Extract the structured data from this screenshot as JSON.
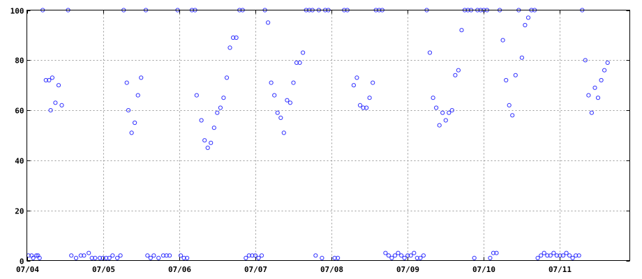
{
  "chart_data": {
    "type": "scatter",
    "title": "",
    "xlabel": "",
    "ylabel": "",
    "grid": true,
    "colors": {
      "points": "#3232ff",
      "grid": "#9a9a9a",
      "frame": "#000000"
    },
    "x_range": [
      "2013-07-04 00:00",
      "2013-07-11 22:00"
    ],
    "ylim": [
      0,
      100
    ],
    "y_ticks": [
      0,
      20,
      40,
      60,
      80,
      100
    ],
    "x_ticks": [
      {
        "t": "2013-07-04 00:00",
        "label": "07/04"
      },
      {
        "t": "2013-07-05 00:00",
        "label": "07/05"
      },
      {
        "t": "2013-07-06 00:00",
        "label": "07/06"
      },
      {
        "t": "2013-07-07 00:00",
        "label": "07/07"
      },
      {
        "t": "2013-07-08 00:00",
        "label": "07/08"
      },
      {
        "t": "2013-07-09 00:00",
        "label": "07/09"
      },
      {
        "t": "2013-07-10 00:00",
        "label": "07/10"
      },
      {
        "t": "2013-07-11 00:00",
        "label": "07/11"
      }
    ],
    "points": [
      [
        "2013-07-04 05:00",
        100
      ],
      [
        "2013-07-04 13:00",
        100
      ],
      [
        "2013-07-04 06:00",
        72
      ],
      [
        "2013-07-04 07:00",
        72
      ],
      [
        "2013-07-04 07:30",
        60
      ],
      [
        "2013-07-04 08:00",
        73
      ],
      [
        "2013-07-04 09:00",
        63
      ],
      [
        "2013-07-04 10:00",
        70
      ],
      [
        "2013-07-04 11:00",
        62
      ],
      [
        "2013-07-04 00:30",
        2
      ],
      [
        "2013-07-04 01:30",
        2
      ],
      [
        "2013-07-04 02:00",
        1
      ],
      [
        "2013-07-04 03:00",
        2
      ],
      [
        "2013-07-04 03:30",
        2
      ],
      [
        "2013-07-04 04:00",
        1
      ],
      [
        "2013-07-04 14:00",
        2
      ],
      [
        "2013-07-04 15:30",
        1
      ],
      [
        "2013-07-04 17:00",
        2
      ],
      [
        "2013-07-04 18:00",
        2
      ],
      [
        "2013-07-04 19:30",
        3
      ],
      [
        "2013-07-04 20:30",
        1
      ],
      [
        "2013-07-04 21:30",
        1
      ],
      [
        "2013-07-04 23:00",
        1
      ],
      [
        "2013-07-05 00:00",
        1
      ],
      [
        "2013-07-05 01:00",
        1
      ],
      [
        "2013-07-05 02:00",
        1
      ],
      [
        "2013-07-05 03:00",
        2
      ],
      [
        "2013-07-05 04:30",
        1
      ],
      [
        "2013-07-05 05:30",
        2
      ],
      [
        "2013-07-05 06:30",
        100
      ],
      [
        "2013-07-05 07:30",
        71
      ],
      [
        "2013-07-05 08:00",
        60
      ],
      [
        "2013-07-05 09:00",
        51
      ],
      [
        "2013-07-05 10:00",
        55
      ],
      [
        "2013-07-05 11:00",
        66
      ],
      [
        "2013-07-05 12:00",
        73
      ],
      [
        "2013-07-05 13:30",
        100
      ],
      [
        "2013-07-05 14:00",
        2
      ],
      [
        "2013-07-05 15:00",
        1
      ],
      [
        "2013-07-05 16:00",
        2
      ],
      [
        "2013-07-05 17:30",
        1
      ],
      [
        "2013-07-05 19:00",
        2
      ],
      [
        "2013-07-05 20:00",
        2
      ],
      [
        "2013-07-05 21:00",
        2
      ],
      [
        "2013-07-05 23:30",
        100
      ],
      [
        "2013-07-06 00:30",
        2
      ],
      [
        "2013-07-06 01:30",
        1
      ],
      [
        "2013-07-06 02:30",
        1
      ],
      [
        "2013-07-06 04:00",
        100
      ],
      [
        "2013-07-06 05:00",
        100
      ],
      [
        "2013-07-06 05:30",
        66
      ],
      [
        "2013-07-06 07:00",
        56
      ],
      [
        "2013-07-06 08:00",
        48
      ],
      [
        "2013-07-06 09:00",
        45
      ],
      [
        "2013-07-06 10:00",
        47
      ],
      [
        "2013-07-06 11:00",
        53
      ],
      [
        "2013-07-06 12:00",
        59
      ],
      [
        "2013-07-06 13:00",
        61
      ],
      [
        "2013-07-06 14:00",
        65
      ],
      [
        "2013-07-06 15:00",
        73
      ],
      [
        "2013-07-06 16:00",
        85
      ],
      [
        "2013-07-06 17:00",
        89
      ],
      [
        "2013-07-06 18:00",
        89
      ],
      [
        "2013-07-06 19:00",
        100
      ],
      [
        "2013-07-06 20:00",
        100
      ],
      [
        "2013-07-06 21:00",
        1
      ],
      [
        "2013-07-06 22:00",
        2
      ],
      [
        "2013-07-06 23:00",
        2
      ],
      [
        "2013-07-07 00:00",
        2
      ],
      [
        "2013-07-07 01:00",
        1
      ],
      [
        "2013-07-07 02:00",
        2
      ],
      [
        "2013-07-07 03:00",
        100
      ],
      [
        "2013-07-07 04:00",
        95
      ],
      [
        "2013-07-07 05:00",
        71
      ],
      [
        "2013-07-07 06:00",
        66
      ],
      [
        "2013-07-07 07:00",
        59
      ],
      [
        "2013-07-07 08:00",
        57
      ],
      [
        "2013-07-07 09:00",
        51
      ],
      [
        "2013-07-07 10:00",
        64
      ],
      [
        "2013-07-07 11:00",
        63
      ],
      [
        "2013-07-07 12:00",
        71
      ],
      [
        "2013-07-07 13:00",
        79
      ],
      [
        "2013-07-07 14:00",
        79
      ],
      [
        "2013-07-07 15:00",
        83
      ],
      [
        "2013-07-07 16:00",
        100
      ],
      [
        "2013-07-07 17:00",
        100
      ],
      [
        "2013-07-07 18:00",
        100
      ],
      [
        "2013-07-07 19:00",
        2
      ],
      [
        "2013-07-07 20:00",
        100
      ],
      [
        "2013-07-07 21:00",
        1
      ],
      [
        "2013-07-07 22:00",
        100
      ],
      [
        "2013-07-07 23:00",
        100
      ],
      [
        "2013-07-08 01:00",
        1
      ],
      [
        "2013-07-08 02:00",
        1
      ],
      [
        "2013-07-08 04:00",
        100
      ],
      [
        "2013-07-08 05:00",
        100
      ],
      [
        "2013-07-08 07:00",
        70
      ],
      [
        "2013-07-08 08:00",
        73
      ],
      [
        "2013-07-08 09:00",
        62
      ],
      [
        "2013-07-08 10:00",
        61
      ],
      [
        "2013-07-08 11:00",
        61
      ],
      [
        "2013-07-08 12:00",
        65
      ],
      [
        "2013-07-08 13:00",
        71
      ],
      [
        "2013-07-08 14:00",
        100
      ],
      [
        "2013-07-08 15:00",
        100
      ],
      [
        "2013-07-08 16:00",
        100
      ],
      [
        "2013-07-08 17:00",
        3
      ],
      [
        "2013-07-08 18:00",
        2
      ],
      [
        "2013-07-08 19:00",
        1
      ],
      [
        "2013-07-08 20:00",
        2
      ],
      [
        "2013-07-08 21:00",
        3
      ],
      [
        "2013-07-08 22:00",
        2
      ],
      [
        "2013-07-08 23:00",
        1
      ],
      [
        "2013-07-09 00:00",
        2
      ],
      [
        "2013-07-09 01:00",
        2
      ],
      [
        "2013-07-09 02:00",
        3
      ],
      [
        "2013-07-09 03:00",
        1
      ],
      [
        "2013-07-09 04:00",
        1
      ],
      [
        "2013-07-09 05:00",
        2
      ],
      [
        "2013-07-09 06:00",
        100
      ],
      [
        "2013-07-09 07:00",
        83
      ],
      [
        "2013-07-09 08:00",
        65
      ],
      [
        "2013-07-09 09:00",
        61
      ],
      [
        "2013-07-09 10:00",
        54
      ],
      [
        "2013-07-09 11:00",
        59
      ],
      [
        "2013-07-09 12:00",
        56
      ],
      [
        "2013-07-09 13:00",
        59
      ],
      [
        "2013-07-09 14:00",
        60
      ],
      [
        "2013-07-09 15:00",
        74
      ],
      [
        "2013-07-09 16:00",
        76
      ],
      [
        "2013-07-09 17:00",
        92
      ],
      [
        "2013-07-09 18:00",
        100
      ],
      [
        "2013-07-09 19:00",
        100
      ],
      [
        "2013-07-09 20:00",
        100
      ],
      [
        "2013-07-09 21:00",
        1
      ],
      [
        "2013-07-09 22:00",
        100
      ],
      [
        "2013-07-09 23:00",
        100
      ],
      [
        "2013-07-10 00:00",
        100
      ],
      [
        "2013-07-10 01:00",
        100
      ],
      [
        "2013-07-10 02:00",
        1
      ],
      [
        "2013-07-10 03:00",
        3
      ],
      [
        "2013-07-10 04:00",
        3
      ],
      [
        "2013-07-10 05:00",
        100
      ],
      [
        "2013-07-10 06:00",
        88
      ],
      [
        "2013-07-10 07:00",
        72
      ],
      [
        "2013-07-10 08:00",
        62
      ],
      [
        "2013-07-10 09:00",
        58
      ],
      [
        "2013-07-10 10:00",
        74
      ],
      [
        "2013-07-10 11:00",
        100
      ],
      [
        "2013-07-10 12:00",
        81
      ],
      [
        "2013-07-10 13:00",
        94
      ],
      [
        "2013-07-10 14:00",
        97
      ],
      [
        "2013-07-10 15:00",
        100
      ],
      [
        "2013-07-10 16:00",
        100
      ],
      [
        "2013-07-10 17:00",
        1
      ],
      [
        "2013-07-10 18:00",
        2
      ],
      [
        "2013-07-10 19:00",
        3
      ],
      [
        "2013-07-10 20:00",
        2
      ],
      [
        "2013-07-10 21:00",
        2
      ],
      [
        "2013-07-10 22:00",
        3
      ],
      [
        "2013-07-10 23:00",
        2
      ],
      [
        "2013-07-11 00:00",
        2
      ],
      [
        "2013-07-11 01:00",
        2
      ],
      [
        "2013-07-11 02:00",
        3
      ],
      [
        "2013-07-11 03:00",
        2
      ],
      [
        "2013-07-11 04:00",
        1
      ],
      [
        "2013-07-11 05:00",
        2
      ],
      [
        "2013-07-11 06:00",
        2
      ],
      [
        "2013-07-11 07:00",
        100
      ],
      [
        "2013-07-11 08:00",
        80
      ],
      [
        "2013-07-11 09:00",
        66
      ],
      [
        "2013-07-11 10:00",
        59
      ],
      [
        "2013-07-11 11:00",
        69
      ],
      [
        "2013-07-11 12:00",
        65
      ],
      [
        "2013-07-11 13:00",
        72
      ],
      [
        "2013-07-11 14:00",
        76
      ],
      [
        "2013-07-11 15:00",
        79
      ]
    ]
  }
}
